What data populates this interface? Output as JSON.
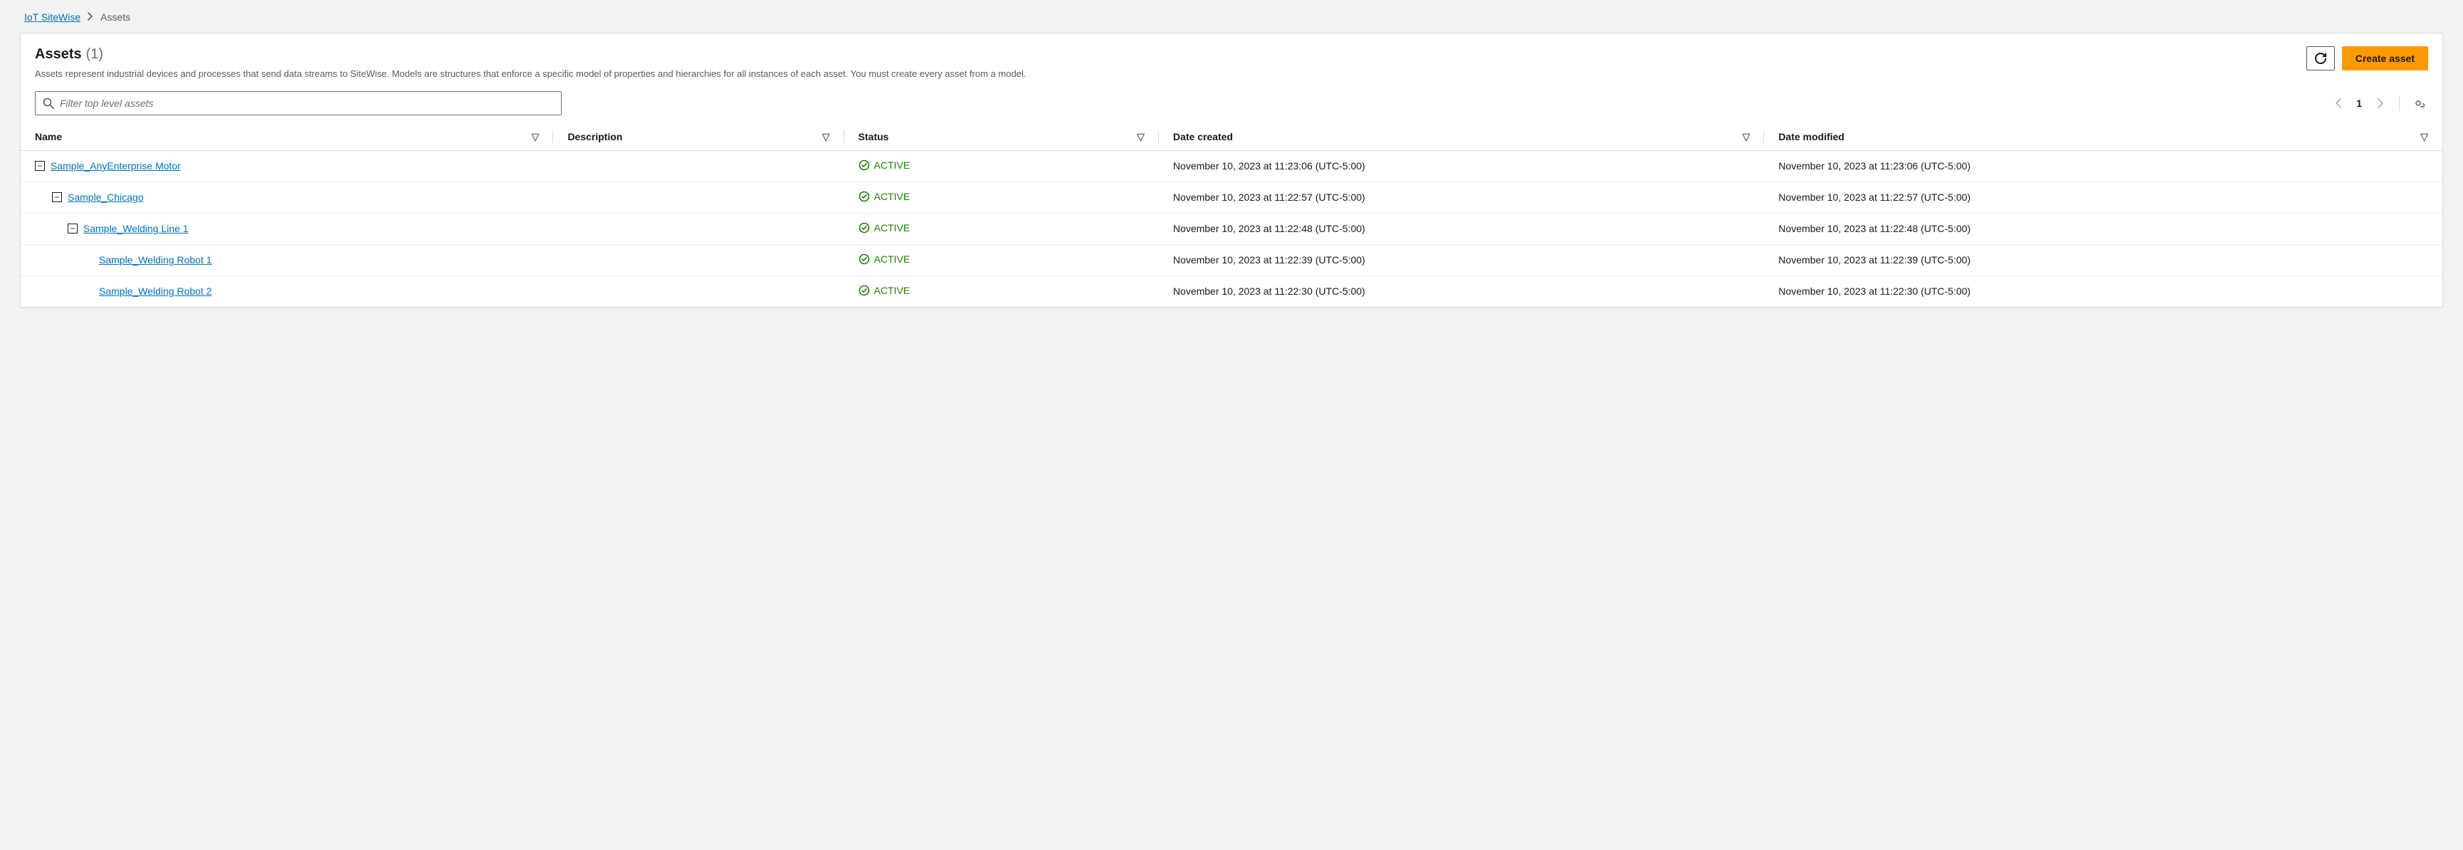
{
  "breadcrumb": {
    "root": "IoT SiteWise",
    "current": "Assets"
  },
  "header": {
    "title": "Assets",
    "count": "(1)",
    "description": "Assets represent industrial devices and processes that send data streams to SiteWise. Models are structures that enforce a specific model of properties and hierarchies for all instances of each asset. You must create every asset from a model.",
    "refresh_label": "Refresh",
    "create_label": "Create asset"
  },
  "filter": {
    "placeholder": "Filter top level assets"
  },
  "pagination": {
    "page": "1"
  },
  "columns": {
    "name": "Name",
    "description": "Description",
    "status": "Status",
    "date_created": "Date created",
    "date_modified": "Date modified",
    "widths": {
      "name": "22%",
      "description": "12%",
      "status": "13%",
      "date_created": "25%",
      "date_modified": "28%"
    }
  },
  "status_label": "ACTIVE",
  "colors": {
    "background": "#f2f3f3",
    "panel_bg": "#ffffff",
    "border": "#d5dbdb",
    "text": "#16191f",
    "text_secondary": "#545b64",
    "link": "#0073bb",
    "primary_button": "#ff9900",
    "status_active": "#1d8102"
  },
  "rows": [
    {
      "name": "Sample_AnyEnterprise Motor",
      "description": "",
      "status": "ACTIVE",
      "date_created": "November 10, 2023 at 11:23:06 (UTC-5:00)",
      "date_modified": "November 10, 2023 at 11:23:06 (UTC-5:00)",
      "indent": 0,
      "expandable": true
    },
    {
      "name": "Sample_Chicago",
      "description": "",
      "status": "ACTIVE",
      "date_created": "November 10, 2023 at 11:22:57 (UTC-5:00)",
      "date_modified": "November 10, 2023 at 11:22:57 (UTC-5:00)",
      "indent": 1,
      "expandable": true
    },
    {
      "name": "Sample_Welding Line 1",
      "description": "",
      "status": "ACTIVE",
      "date_created": "November 10, 2023 at 11:22:48 (UTC-5:00)",
      "date_modified": "November 10, 2023 at 11:22:48 (UTC-5:00)",
      "indent": 2,
      "expandable": true
    },
    {
      "name": "Sample_Welding Robot 1",
      "description": "",
      "status": "ACTIVE",
      "date_created": "November 10, 2023 at 11:22:39 (UTC-5:00)",
      "date_modified": "November 10, 2023 at 11:22:39 (UTC-5:00)",
      "indent": 3,
      "expandable": false
    },
    {
      "name": "Sample_Welding Robot 2",
      "description": "",
      "status": "ACTIVE",
      "date_created": "November 10, 2023 at 11:22:30 (UTC-5:00)",
      "date_modified": "November 10, 2023 at 11:22:30 (UTC-5:00)",
      "indent": 3,
      "expandable": false
    }
  ]
}
